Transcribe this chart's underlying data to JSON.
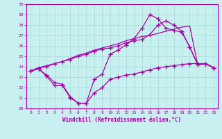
{
  "xlabel": "Windchill (Refroidissement éolien,°C)",
  "bg_color": "#c8f0f0",
  "line_color": "#aa00aa",
  "grid_color": "#aadddd",
  "xlim": [
    -0.5,
    23.5
  ],
  "ylim": [
    20,
    30
  ],
  "xticks": [
    0,
    1,
    2,
    3,
    4,
    5,
    6,
    7,
    8,
    9,
    10,
    11,
    12,
    13,
    14,
    15,
    16,
    17,
    18,
    19,
    20,
    21,
    22,
    23
  ],
  "yticks": [
    20,
    21,
    22,
    23,
    24,
    25,
    26,
    27,
    28,
    29,
    30
  ],
  "lines": [
    {
      "x": [
        0,
        1,
        2,
        3,
        4,
        5,
        6,
        7,
        8,
        9,
        10,
        11,
        12,
        13,
        14,
        15,
        16,
        17,
        18,
        19,
        20,
        21,
        22,
        23
      ],
      "y": [
        23.6,
        23.8,
        23.1,
        22.2,
        22.2,
        21.0,
        20.5,
        20.5,
        21.5,
        22.0,
        22.8,
        23.0,
        23.2,
        23.3,
        23.5,
        23.7,
        23.9,
        24.0,
        24.1,
        24.2,
        24.3,
        24.3,
        24.3,
        23.9
      ],
      "markers": true
    },
    {
      "x": [
        0,
        1,
        2,
        3,
        4,
        5,
        6,
        7,
        8,
        9,
        10,
        11,
        12,
        13,
        14,
        15,
        16,
        17,
        18,
        19,
        20,
        21,
        22,
        23
      ],
      "y": [
        23.6,
        23.8,
        23.2,
        22.5,
        22.3,
        21.1,
        20.5,
        20.5,
        22.8,
        23.3,
        25.2,
        25.6,
        26.1,
        26.7,
        27.7,
        29.0,
        28.6,
        27.7,
        27.5,
        27.3,
        25.9,
        24.2,
        24.3,
        23.9
      ],
      "markers": true
    },
    {
      "x": [
        0,
        1,
        2,
        3,
        4,
        5,
        6,
        7,
        8,
        9,
        10,
        11,
        12,
        13,
        14,
        15,
        16,
        17,
        18,
        19,
        20,
        21,
        22,
        23
      ],
      "y": [
        23.6,
        23.9,
        24.1,
        24.3,
        24.5,
        24.8,
        25.1,
        25.3,
        25.6,
        25.8,
        26.0,
        26.2,
        26.5,
        26.7,
        26.9,
        27.0,
        27.2,
        27.4,
        27.6,
        27.8,
        27.9,
        24.2,
        24.3,
        23.9
      ],
      "markers": false
    },
    {
      "x": [
        0,
        1,
        2,
        3,
        4,
        5,
        6,
        7,
        8,
        9,
        10,
        11,
        12,
        13,
        14,
        15,
        16,
        17,
        18,
        19,
        20,
        21,
        22,
        23
      ],
      "y": [
        23.6,
        23.9,
        24.0,
        24.3,
        24.5,
        24.7,
        25.0,
        25.2,
        25.5,
        25.7,
        25.8,
        26.0,
        26.3,
        26.5,
        26.6,
        27.1,
        28.0,
        28.4,
        28.0,
        27.4,
        25.9,
        24.2,
        24.3,
        23.9
      ],
      "markers": true
    }
  ]
}
